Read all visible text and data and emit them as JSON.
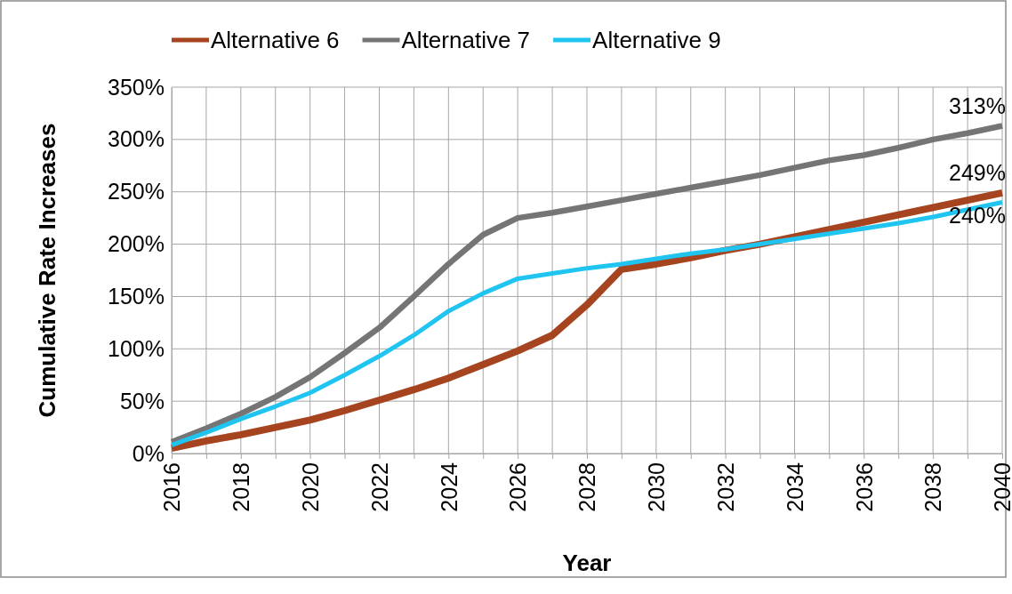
{
  "chart_data": {
    "type": "line",
    "xlabel": "Year",
    "ylabel": "Cumulative Rate Increases",
    "x": [
      2016,
      2017,
      2018,
      2019,
      2020,
      2021,
      2022,
      2023,
      2024,
      2025,
      2026,
      2027,
      2028,
      2029,
      2030,
      2031,
      2032,
      2033,
      2034,
      2035,
      2036,
      2037,
      2038,
      2039,
      2040
    ],
    "series": [
      {
        "name": "Alternative 6",
        "color": "#a5441f",
        "values": [
          5,
          12,
          18,
          25,
          32,
          41,
          51,
          61,
          72,
          85,
          98,
          113,
          142,
          176,
          181,
          187,
          194,
          200,
          207,
          214,
          221,
          228,
          235,
          242,
          249
        ],
        "value_labels": [
          null,
          null,
          null,
          null,
          null,
          null,
          null,
          null,
          null,
          null,
          null,
          null,
          null,
          null,
          null,
          null,
          null,
          null,
          null,
          null,
          null,
          null,
          null,
          null,
          "249%"
        ]
      },
      {
        "name": "Alternative 7",
        "color": "#757575",
        "values": [
          11,
          24,
          38,
          54,
          73,
          96,
          120,
          150,
          181,
          209,
          225,
          230,
          236,
          242,
          248,
          254,
          260,
          266,
          273,
          280,
          285,
          292,
          300,
          306,
          313
        ],
        "value_labels": [
          null,
          null,
          null,
          null,
          null,
          null,
          null,
          null,
          null,
          null,
          null,
          null,
          null,
          null,
          null,
          null,
          null,
          null,
          null,
          null,
          null,
          null,
          null,
          null,
          "313%"
        ]
      },
      {
        "name": "Alternative 9",
        "color": "#1fc4f0",
        "values": [
          8,
          20,
          33,
          45,
          58,
          75,
          93,
          113,
          136,
          153,
          167,
          172,
          177,
          181,
          186,
          191,
          195,
          200,
          205,
          210,
          215,
          220,
          226,
          233,
          240
        ],
        "value_labels": [
          null,
          null,
          null,
          null,
          null,
          null,
          null,
          null,
          null,
          null,
          null,
          null,
          null,
          null,
          null,
          null,
          null,
          null,
          null,
          null,
          null,
          null,
          null,
          null,
          "240%"
        ]
      }
    ],
    "xlim": [
      2016,
      2040
    ],
    "xticks": [
      2016,
      {
        "value": 2017,
        "label": null
      },
      2018,
      {
        "value": 2019,
        "label": null
      },
      2020,
      {
        "value": 2021,
        "label": null
      },
      2022,
      {
        "value": 2023,
        "label": null
      },
      2024,
      {
        "value": 2025,
        "label": null
      },
      2026,
      {
        "value": 2027,
        "label": null
      },
      2028,
      {
        "value": 2029,
        "label": null
      },
      2030,
      {
        "value": 2031,
        "label": null
      },
      2032,
      {
        "value": 2033,
        "label": null
      },
      2034,
      {
        "value": 2035,
        "label": null
      },
      2036,
      {
        "value": 2037,
        "label": null
      },
      2038,
      {
        "value": 2039,
        "label": null
      },
      2040
    ],
    "ylim": [
      0,
      350
    ],
    "yticks": [
      {
        "value": 0,
        "label": "0%"
      },
      {
        "value": 50,
        "label": "50%"
      },
      {
        "value": 100,
        "label": "100%"
      },
      {
        "value": 150,
        "label": "150%"
      },
      {
        "value": 200,
        "label": "200%"
      },
      {
        "value": 250,
        "label": "250%"
      },
      {
        "value": 300,
        "label": "300%"
      },
      {
        "value": 350,
        "label": "350%"
      }
    ],
    "grid": true,
    "legend": "top",
    "marker": "none",
    "line_style": "solid"
  }
}
